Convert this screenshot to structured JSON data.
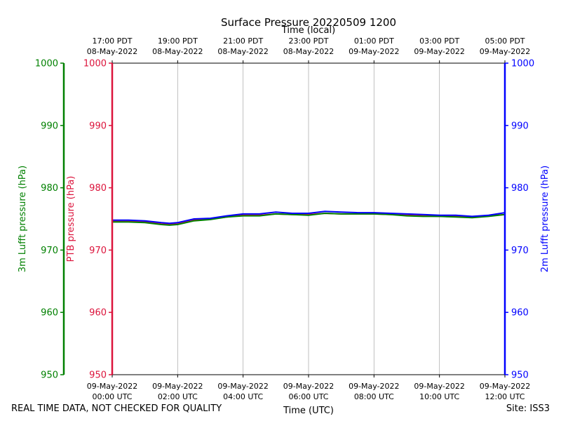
{
  "chart_data": {
    "type": "line",
    "title": "Surface Pressure 20220509 1200",
    "top_xlabel": "Time (local)",
    "bottom_xlabel": "Time (UTC)",
    "x_unit": "hours since 09-May-2022 00:00 UTC",
    "xlim": [
      0,
      12
    ],
    "ylim": [
      950,
      1000
    ],
    "yticks": [
      950,
      960,
      970,
      980,
      990,
      1000
    ],
    "x_grid": true,
    "axes": [
      {
        "id": "ptb",
        "label": "PTB pressure (hPa)",
        "color": "#dc143c"
      },
      {
        "id": "lufft3",
        "label": "3m Lufft pressure (hPa)",
        "color": "#008000"
      },
      {
        "id": "lufft2",
        "label": "2m Lufft pressure (hPa)",
        "color": "#0000ff"
      }
    ],
    "bottom_ticks": [
      {
        "x": 0,
        "date": "09-May-2022",
        "time": "00:00 UTC"
      },
      {
        "x": 2,
        "date": "09-May-2022",
        "time": "02:00 UTC"
      },
      {
        "x": 4,
        "date": "09-May-2022",
        "time": "04:00 UTC"
      },
      {
        "x": 6,
        "date": "09-May-2022",
        "time": "06:00 UTC"
      },
      {
        "x": 8,
        "date": "09-May-2022",
        "time": "08:00 UTC"
      },
      {
        "x": 10,
        "date": "09-May-2022",
        "time": "10:00 UTC"
      },
      {
        "x": 12,
        "date": "09-May-2022",
        "time": "12:00 UTC"
      }
    ],
    "top_ticks": [
      {
        "x": 0,
        "time": "17:00 PDT",
        "date": "08-May-2022"
      },
      {
        "x": 2,
        "time": "19:00 PDT",
        "date": "08-May-2022"
      },
      {
        "x": 4,
        "time": "21:00 PDT",
        "date": "08-May-2022"
      },
      {
        "x": 6,
        "time": "23:00 PDT",
        "date": "08-May-2022"
      },
      {
        "x": 8,
        "time": "01:00 PDT",
        "date": "09-May-2022"
      },
      {
        "x": 10,
        "time": "03:00 PDT",
        "date": "09-May-2022"
      },
      {
        "x": 12,
        "time": "05:00 PDT",
        "date": "09-May-2022"
      }
    ],
    "series": [
      {
        "name": "PTB pressure",
        "color": "#dc143c",
        "x": [
          0,
          0.5,
          1,
          1.5,
          1.75,
          2,
          2.5,
          3,
          3.5,
          4,
          4.5,
          5,
          5.5,
          6,
          6.5,
          7,
          7.5,
          8,
          8.5,
          9,
          9.5,
          10,
          10.5,
          11,
          11.5,
          12
        ],
        "values": [
          974.6,
          974.6,
          974.5,
          974.2,
          974.1,
          974.2,
          974.8,
          975.0,
          975.3,
          975.6,
          975.6,
          975.8,
          975.7,
          975.7,
          975.9,
          975.8,
          975.8,
          975.8,
          975.7,
          975.6,
          975.5,
          975.4,
          975.4,
          975.3,
          975.5,
          975.7
        ]
      },
      {
        "name": "3m Lufft pressure",
        "color": "#008000",
        "x": [
          0,
          0.5,
          1,
          1.5,
          1.75,
          2,
          2.5,
          3,
          3.5,
          4,
          4.5,
          5,
          5.5,
          6,
          6.5,
          7,
          7.5,
          8,
          8.5,
          9,
          9.5,
          10,
          10.5,
          11,
          11.5,
          12
        ],
        "values": [
          974.5,
          974.5,
          974.4,
          974.1,
          974.0,
          974.1,
          974.7,
          974.9,
          975.3,
          975.5,
          975.5,
          975.8,
          975.7,
          975.6,
          975.9,
          975.8,
          975.8,
          975.8,
          975.7,
          975.5,
          975.4,
          975.4,
          975.3,
          975.2,
          975.4,
          975.7
        ]
      },
      {
        "name": "2m Lufft pressure",
        "color": "#0000ff",
        "x": [
          0,
          0.5,
          1,
          1.5,
          1.75,
          2,
          2.5,
          3,
          3.5,
          4,
          4.5,
          5,
          5.5,
          6,
          6.5,
          7,
          7.5,
          8,
          8.5,
          9,
          9.5,
          10,
          10.5,
          11,
          11.5,
          12
        ],
        "values": [
          974.8,
          974.8,
          974.7,
          974.4,
          974.3,
          974.4,
          975.0,
          975.1,
          975.5,
          975.8,
          975.8,
          976.1,
          975.9,
          975.9,
          976.2,
          976.1,
          976.0,
          976.0,
          975.9,
          975.8,
          975.7,
          975.6,
          975.6,
          975.4,
          975.6,
          976.0
        ]
      }
    ]
  },
  "footer": {
    "disclaimer": "REAL TIME DATA, NOT CHECKED FOR QUALITY",
    "site": "Site: ISS3"
  }
}
